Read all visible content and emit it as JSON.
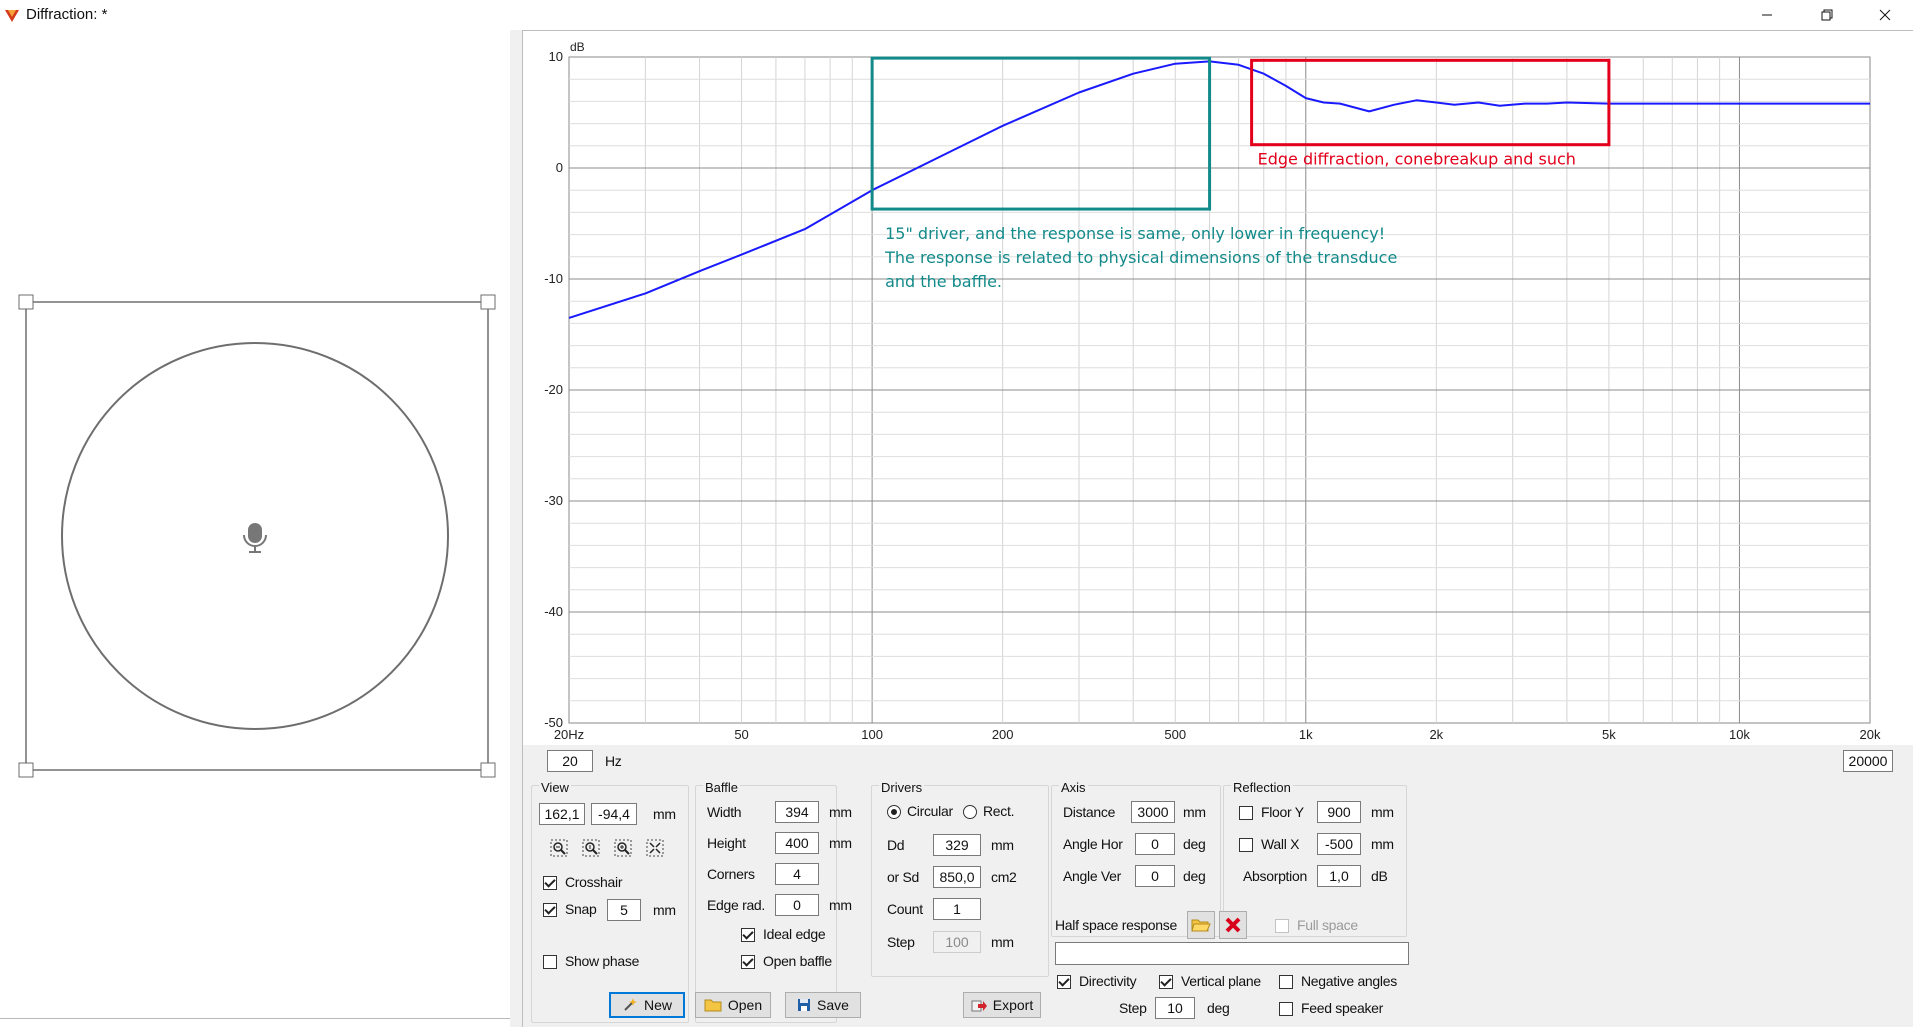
{
  "window": {
    "title": "Diffraction: *"
  },
  "chart_data": {
    "type": "line",
    "title": "",
    "ylabel": "dB",
    "xlabel": "",
    "x_scale": "log",
    "xlim": [
      20,
      20000
    ],
    "ylim": [
      -50,
      10
    ],
    "grid": true,
    "x_tick_labels": [
      "20Hz",
      "50",
      "100",
      "200",
      "500",
      "1k",
      "2k",
      "5k",
      "10k",
      "20k"
    ],
    "x_tick_values": [
      20,
      50,
      100,
      200,
      500,
      1000,
      2000,
      5000,
      10000,
      20000
    ],
    "y_tick_labels": [
      "10",
      "0",
      "-10",
      "-20",
      "-30",
      "-40",
      "-50"
    ],
    "y_tick_values": [
      10,
      0,
      -10,
      -20,
      -30,
      -40,
      -50
    ],
    "series": [
      {
        "color": "#1a1aff",
        "x": [
          20,
          30,
          40,
          50,
          70,
          100,
          150,
          200,
          300,
          400,
          500,
          600,
          700,
          800,
          900,
          1000,
          1100,
          1200,
          1400,
          1600,
          1800,
          2000,
          2200,
          2500,
          2800,
          3200,
          3600,
          4000,
          5000,
          7000,
          10000,
          15000,
          20000
        ],
        "y": [
          -13.5,
          -11.3,
          -9.3,
          -7.8,
          -5.5,
          -2.0,
          1.4,
          3.8,
          6.8,
          8.5,
          9.4,
          9.6,
          9.3,
          8.5,
          7.4,
          6.3,
          5.9,
          5.8,
          5.1,
          5.7,
          6.1,
          5.9,
          5.7,
          5.9,
          5.6,
          5.8,
          5.8,
          5.9,
          5.8,
          5.8,
          5.8,
          5.8,
          5.8
        ]
      }
    ],
    "annotations": [
      {
        "id": "teal",
        "color": "#138a8a",
        "text_lines": [
          "15\" driver, and the response is same, only lower in frequency!",
          "The response is related to physical dimensions of the transduce",
          "and the baffle."
        ]
      },
      {
        "id": "red",
        "color": "#e3001b",
        "text_lines": [
          "Edge diffraction, conebreakup and such"
        ]
      }
    ]
  },
  "freq_range": {
    "min": "20",
    "min_unit": "Hz",
    "max": "20000"
  },
  "view": {
    "title": "View",
    "x": "162,1",
    "y": "-94,4",
    "unit": "mm",
    "tools": [
      "zoom-out-icon",
      "zoom-fit-icon",
      "zoom-in-icon",
      "fit-all-icon"
    ],
    "crosshair_label": "Crosshair",
    "crosshair": true,
    "snap_label": "Snap",
    "snap": true,
    "snap_value": "5",
    "snap_unit": "mm",
    "show_phase_label": "Show phase",
    "show_phase": false
  },
  "baffle": {
    "title": "Baffle",
    "width_label": "Width",
    "width": "394",
    "height_label": "Height",
    "height": "400",
    "corners_label": "Corners",
    "corners": "4",
    "edge_label": "Edge rad.",
    "edge": "0",
    "unit": "mm",
    "ideal_edge_label": "Ideal edge",
    "ideal_edge": true,
    "open_baffle_label": "Open baffle",
    "open_baffle": true
  },
  "drivers": {
    "title": "Drivers",
    "circular_label": "Circular",
    "rect_label": "Rect.",
    "circular": true,
    "dd_label": "Dd",
    "dd": "329",
    "dd_unit": "mm",
    "sd_label": "or Sd",
    "sd": "850,0",
    "sd_unit": "cm2",
    "count_label": "Count",
    "count": "1",
    "step_label": "Step",
    "step": "100",
    "step_unit": "mm"
  },
  "axis": {
    "title": "Axis",
    "distance_label": "Distance",
    "distance": "3000",
    "distance_unit": "mm",
    "angle_hor_label": "Angle Hor",
    "angle_hor": "0",
    "angle_ver_label": "Angle Ver",
    "angle_ver": "0",
    "deg_unit": "deg"
  },
  "reflection": {
    "title": "Reflection",
    "floor_label": "Floor Y",
    "floor": "900",
    "floor_checked": false,
    "wall_label": "Wall  X",
    "wall": "-500",
    "wall_checked": false,
    "unit": "mm",
    "absorption_label": "Absorption",
    "absorption": "1,0",
    "absorption_unit": "dB"
  },
  "half_space": {
    "label": "Half space response",
    "full_space_label": "Full space",
    "full_space": false,
    "value": ""
  },
  "directivity": {
    "directivity_label": "Directivity",
    "directivity": true,
    "vertical_label": "Vertical plane",
    "vertical": true,
    "negative_label": "Negative angles",
    "negative": false,
    "feed_label": "Feed speaker",
    "feed": false,
    "step_label": "Step",
    "step": "10",
    "step_unit": "deg"
  },
  "buttons": {
    "new": "New",
    "open": "Open",
    "save": "Save",
    "export": "Export"
  }
}
